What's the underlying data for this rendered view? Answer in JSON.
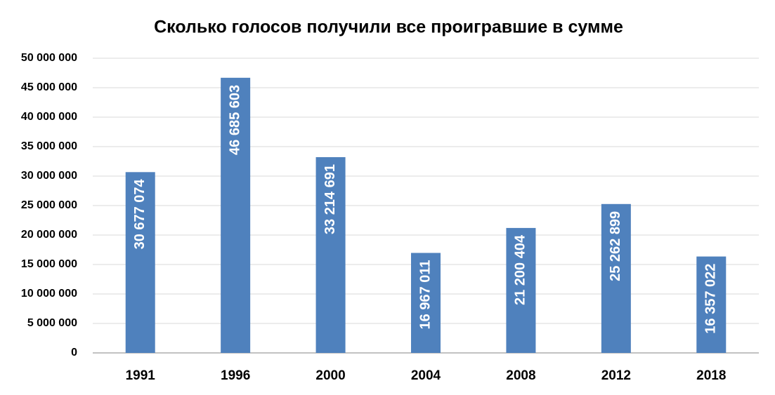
{
  "chart_data": {
    "type": "bar",
    "title": "Сколько голосов получили все проигравшие в сумме",
    "categories": [
      "1991",
      "1996",
      "2000",
      "2004",
      "2008",
      "2012",
      "2018"
    ],
    "values": [
      30677074,
      46685603,
      33214691,
      16967011,
      21200404,
      25262899,
      16357022
    ],
    "value_labels": [
      "30 677 074",
      "46 685 603",
      "33 214 691",
      "16 967 011",
      "21 200 404",
      "25 262 899",
      "16 357 022"
    ],
    "color": "#4f81bd",
    "ylim": [
      0,
      50000000
    ],
    "yticks": [
      0,
      {
        "value": 5000000,
        "label": "5 000 000"
      },
      {
        "value": 10000000,
        "label": "10 000 000"
      },
      {
        "value": 15000000,
        "label": "15 000 000"
      },
      {
        "value": 20000000,
        "label": "20 000 000"
      },
      {
        "value": 25000000,
        "label": "25 000 000"
      },
      {
        "value": 30000000,
        "label": "30 000 000"
      },
      {
        "value": 35000000,
        "label": "35 000 000"
      },
      {
        "value": 40000000,
        "label": "40 000 000"
      },
      {
        "value": 45000000,
        "label": "45 000 000"
      },
      {
        "value": 50000000,
        "label": "50 000 000"
      }
    ],
    "grid": true
  }
}
